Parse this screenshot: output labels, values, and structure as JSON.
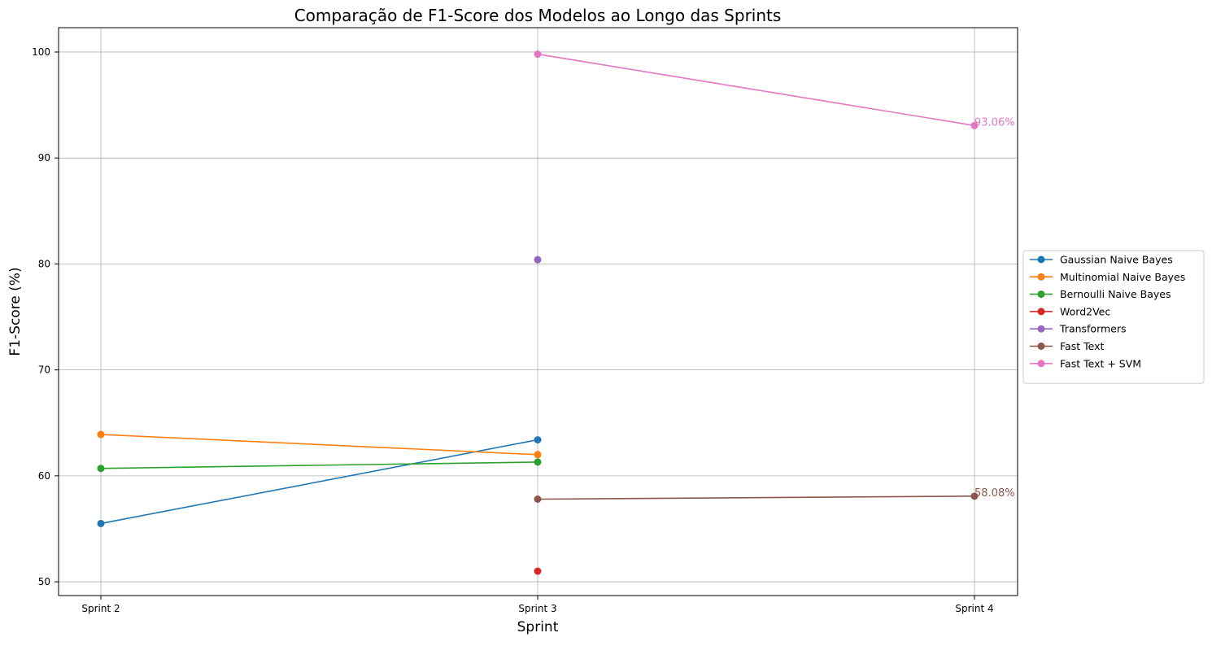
{
  "chart_data": {
    "type": "line",
    "title": "Comparação de F1-Score dos Modelos ao Longo das Sprints",
    "xlabel": "Sprint",
    "ylabel": "F1-Score (%)",
    "categories": [
      "Sprint 2",
      "Sprint 3",
      "Sprint 4"
    ],
    "ylim": [
      48.7,
      102.3
    ],
    "yticks": [
      50,
      60,
      70,
      80,
      90,
      100
    ],
    "grid": true,
    "legend_position": "center-right-outside",
    "series": [
      {
        "name": "Gaussian Naive Bayes",
        "color": "#1f77b4",
        "values": [
          55.5,
          63.4,
          null
        ]
      },
      {
        "name": "Multinomial Naive Bayes",
        "color": "#ff7f0e",
        "values": [
          63.9,
          62.0,
          null
        ]
      },
      {
        "name": "Bernoulli Naive Bayes",
        "color": "#2ca02c",
        "values": [
          60.7,
          61.3,
          null
        ]
      },
      {
        "name": "Word2Vec",
        "color": "#d62728",
        "values": [
          null,
          51.0,
          null
        ]
      },
      {
        "name": "Transformers",
        "color": "#9467bd",
        "values": [
          null,
          80.4,
          null
        ]
      },
      {
        "name": "Fast Text",
        "color": "#8c564b",
        "values": [
          null,
          57.8,
          58.08
        ]
      },
      {
        "name": "Fast Text + SVM",
        "color": "#e377c2",
        "values": [
          null,
          99.8,
          93.06
        ]
      }
    ],
    "annotations": [
      {
        "text": "93.06%",
        "series": "Fast Text + SVM",
        "category": "Sprint 4",
        "value": 93.06,
        "color": "#e377c2"
      },
      {
        "text": "58.08%",
        "series": "Fast Text",
        "category": "Sprint 4",
        "value": 58.08,
        "color": "#8c564b"
      }
    ]
  }
}
